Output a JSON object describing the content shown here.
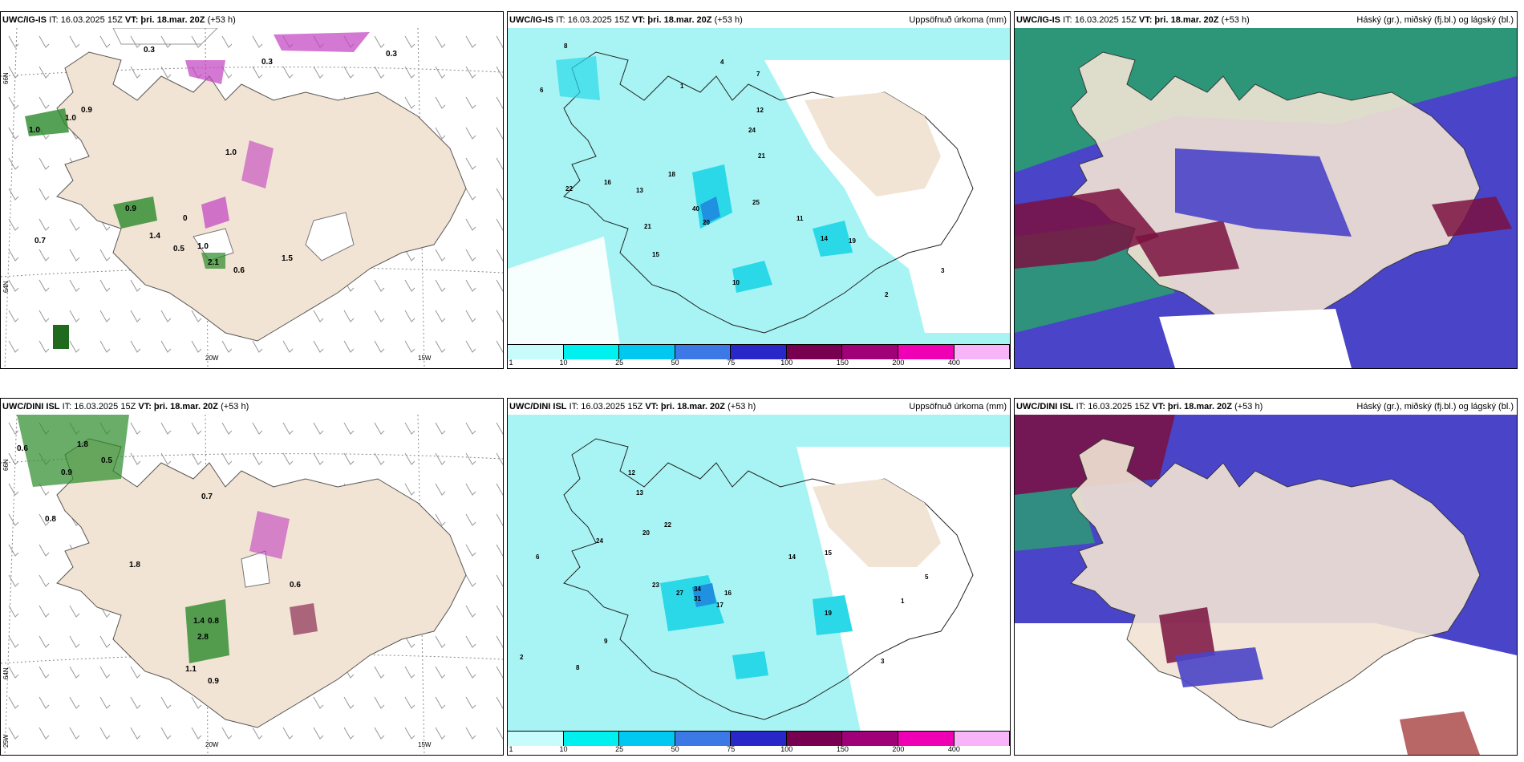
{
  "panels": [
    {
      "model": "UWC/IG-IS",
      "it": "IT: 16.03.2025 15Z",
      "vt": "VT: þri. 18.mar. 20Z",
      "lead": "(+53 h)",
      "right": ""
    },
    {
      "model": "UWC/IG-IS",
      "it": "IT: 16.03.2025 15Z",
      "vt": "VT: þri. 18.mar. 20Z",
      "lead": "(+53 h)",
      "right": "Uppsöfnuð úrkoma (mm)"
    },
    {
      "model": "UWC/IG-IS",
      "it": "IT: 16.03.2025 15Z",
      "vt": "VT: þri. 18.mar. 20Z",
      "lead": "(+53 h)",
      "right": "Háský (gr.), miðský (fj.bl.) og lágský (bl.)"
    },
    {
      "model": "UWC/DINI ISL",
      "it": "IT: 16.03.2025 15Z",
      "vt": "VT: þri. 18.mar. 20Z",
      "lead": "(+53 h)",
      "right": ""
    },
    {
      "model": "UWC/DINI ISL",
      "it": "IT: 16.03.2025 15Z",
      "vt": "VT: þri. 18.mar. 20Z",
      "lead": "(+53 h)",
      "right": "Uppsöfnuð úrkoma (mm)"
    },
    {
      "model": "UWC/DINI ISL",
      "it": "IT: 16.03.2025 15Z",
      "vt": "VT: þri. 18.mar. 20Z",
      "lead": "(+53 h)",
      "right": "Háský (gr.), miðský (fj.bl.) og lágský (bl.)"
    }
  ],
  "axis_labels": {
    "lat_top": "66N",
    "lat_mid": "64N",
    "lon_left": "25W",
    "lon_mid": "20W",
    "lon_right": "15W"
  },
  "legend": {
    "labels": [
      "1",
      "10",
      "25",
      "50",
      "75",
      "100",
      "150",
      "200",
      "400"
    ],
    "colors": [
      "#c8fcfc",
      "#00f0f0",
      "#00c8f0",
      "#3c78e6",
      "#2828c8",
      "#780050",
      "#a00078",
      "#f000b4",
      "#f8b4f8"
    ]
  },
  "colors": {
    "land": "#f2e4d4",
    "sea": "#ffffff",
    "precip_light": "#a8f4f4",
    "precip_mid": "#2ad8e8",
    "precip_dark": "#2090e0",
    "cloud_high": "#2aa070",
    "cloud_mid": "#7a1040",
    "cloud_low": "#4a44c8",
    "shower_green": "#2a8a2a",
    "shower_purple": "#c040c0"
  },
  "values": {
    "p1": [
      "1.0",
      "1.0",
      "0.9",
      "0.9",
      "1.0",
      "0.7",
      "1.4",
      "0.5",
      "0",
      "1.0",
      "2.1",
      "0.6",
      "0.3",
      "0.3",
      "0.3",
      "1.5"
    ],
    "p2": [
      "8",
      "4",
      "6",
      "1",
      "7",
      "12",
      "24",
      "21",
      "22",
      "16",
      "13",
      "40",
      "20",
      "21",
      "25",
      "11",
      "14",
      "19",
      "15",
      "2",
      "3",
      "10",
      "18"
    ],
    "p4": [
      "0.6",
      "1.8",
      "0.9",
      "0.5",
      "0.7",
      "0.8",
      "1.8",
      "1.4",
      "0.8",
      "2.8",
      "1.1",
      "0.9",
      "0.6"
    ],
    "p5": [
      "2",
      "8",
      "12",
      "13",
      "22",
      "23",
      "27",
      "34",
      "31",
      "16",
      "17",
      "19",
      "14",
      "15",
      "5",
      "3",
      "1",
      "6",
      "9",
      "20",
      "24"
    ]
  }
}
